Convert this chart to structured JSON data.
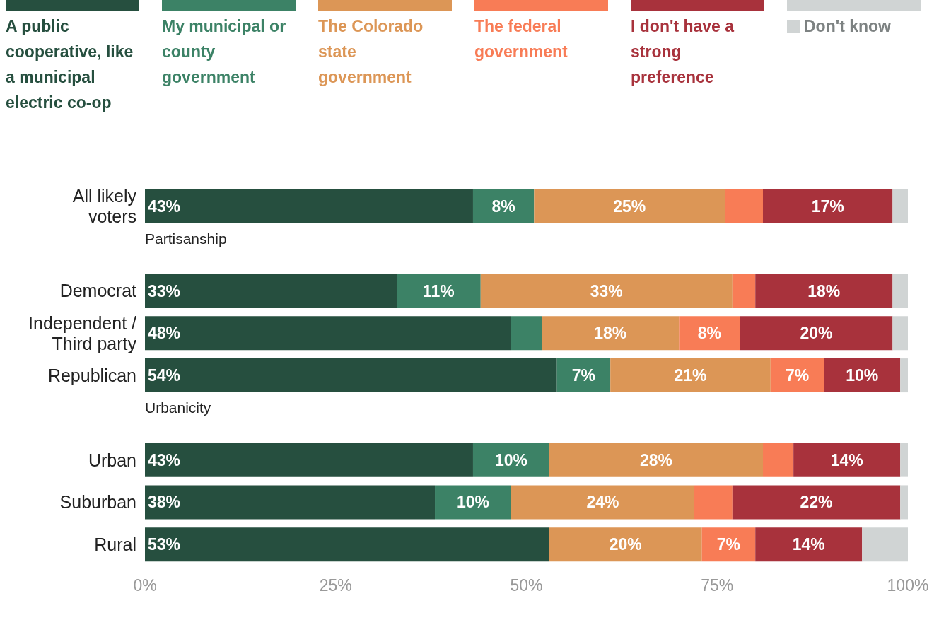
{
  "chart_data": {
    "type": "bar",
    "orientation": "horizontal",
    "stacked": true,
    "legend": "top",
    "categories": [
      "All likely voters",
      "Partisanship",
      "Democrat",
      "Independent / Third party",
      "Republican",
      "Urbanicity",
      "Urban",
      "Suburban",
      "Rural"
    ],
    "xlim": [
      0,
      100
    ],
    "xticks": [
      {
        "value": 0,
        "label": "0%"
      },
      {
        "value": 25,
        "label": "25%"
      },
      {
        "value": 50,
        "label": "50%"
      },
      {
        "value": 75,
        "label": "75%"
      },
      {
        "value": 100,
        "label": "100%"
      }
    ],
    "series": [
      {
        "name": "A public cooperative, like a municipal electric co-op",
        "color": "#264f3f",
        "values": [
          43,
          null,
          33,
          48,
          54,
          null,
          43,
          38,
          53
        ],
        "value_labels": [
          "43%",
          null,
          "33%",
          "48%",
          "54%",
          null,
          "43%",
          "38%",
          "53%"
        ]
      },
      {
        "name": "My municipal or county government",
        "color": "#3c8266",
        "values": [
          8,
          null,
          11,
          4,
          7,
          null,
          10,
          10,
          null
        ],
        "value_labels": [
          "8%",
          null,
          "11%",
          null,
          "7%",
          null,
          "10%",
          "10%",
          null
        ]
      },
      {
        "name": "The Colorado state government",
        "color": "#dc9656",
        "values": [
          25,
          null,
          33,
          18,
          21,
          null,
          28,
          24,
          20
        ],
        "value_labels": [
          "25%",
          null,
          "33%",
          "18%",
          "21%",
          null,
          "28%",
          "24%",
          "20%"
        ]
      },
      {
        "name": "The federal government",
        "color": "#f87c56",
        "values": [
          5,
          null,
          3,
          8,
          7,
          null,
          4,
          5,
          7
        ],
        "value_labels": [
          null,
          null,
          null,
          "8%",
          "7%",
          null,
          null,
          null,
          "7%"
        ]
      },
      {
        "name": "I don't have a strong preference",
        "color": "#a8323c",
        "values": [
          17,
          null,
          18,
          20,
          10,
          null,
          14,
          22,
          14
        ],
        "value_labels": [
          "17%",
          null,
          "18%",
          "20%",
          "10%",
          null,
          "14%",
          "22%",
          "14%"
        ]
      },
      {
        "name": "Don't know",
        "color": "#d0d4d4",
        "values": [
          2,
          null,
          2,
          2,
          1,
          null,
          1,
          1,
          6
        ],
        "value_labels": [
          null,
          null,
          null,
          null,
          null,
          null,
          null,
          null,
          null
        ]
      }
    ]
  }
}
